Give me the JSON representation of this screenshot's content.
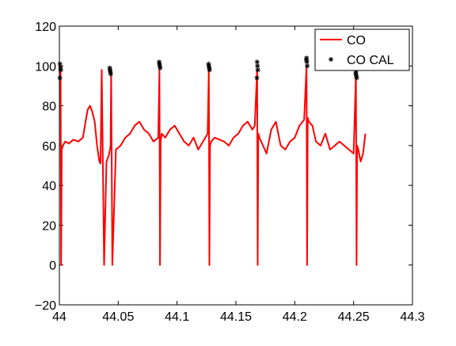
{
  "chart_data": {
    "type": "line",
    "title": "",
    "xlabel": "",
    "ylabel": "",
    "xlim": [
      44,
      44.3
    ],
    "ylim": [
      -20,
      120
    ],
    "x_ticks": [
      44,
      44.05,
      44.1,
      44.15,
      44.2,
      44.25,
      44.3
    ],
    "x_tick_labels": [
      "44",
      "44.05",
      "44.1",
      "44.15",
      "44.2",
      "44.25",
      "44.3"
    ],
    "y_ticks": [
      -20,
      0,
      20,
      40,
      60,
      80,
      100,
      120
    ],
    "y_tick_labels": [
      "−20",
      "0",
      "20",
      "40",
      "60",
      "80",
      "100",
      "120"
    ],
    "grid": false,
    "legend_position": "top-right",
    "series": [
      {
        "name": "CO",
        "color": "#ff0000",
        "style": "line",
        "x": [
          44.0,
          44.001,
          44.0015,
          44.002,
          44.003,
          44.005,
          44.008,
          44.012,
          44.016,
          44.02,
          44.024,
          44.026,
          44.028,
          44.03,
          44.032,
          44.034,
          44.035,
          44.036,
          44.038,
          44.04,
          44.042,
          44.043,
          44.0435,
          44.044,
          44.045,
          44.048,
          44.052,
          44.056,
          44.06,
          44.064,
          44.068,
          44.072,
          44.076,
          44.08,
          44.084,
          44.085,
          44.0855,
          44.086,
          44.087,
          44.09,
          44.094,
          44.098,
          44.102,
          44.106,
          44.11,
          44.114,
          44.118,
          44.122,
          44.126,
          44.127,
          44.1275,
          44.128,
          44.129,
          44.132,
          44.136,
          44.14,
          44.144,
          44.148,
          44.152,
          44.156,
          44.16,
          44.164,
          44.166,
          44.168,
          44.1685,
          44.169,
          44.17,
          44.173,
          44.176,
          44.18,
          44.184,
          44.188,
          44.192,
          44.196,
          44.2,
          44.204,
          44.208,
          44.21,
          44.2105,
          44.211,
          44.212,
          44.215,
          44.218,
          44.222,
          44.226,
          44.23,
          44.234,
          44.238,
          44.242,
          44.246,
          44.25,
          44.252,
          44.2525,
          44.253,
          44.254,
          44.256,
          44.258,
          44.26
        ],
        "y": [
          97,
          100,
          0,
          58,
          60,
          62,
          61,
          63,
          62,
          64,
          78,
          80,
          77,
          72,
          60,
          52,
          51,
          98,
          0,
          52,
          55,
          58,
          60,
          98,
          0,
          58,
          60,
          64,
          66,
          70,
          72,
          68,
          66,
          62,
          64,
          98,
          0,
          62,
          66,
          64,
          68,
          70,
          66,
          62,
          60,
          64,
          58,
          62,
          66,
          98,
          0,
          60,
          62,
          64,
          63,
          62,
          60,
          64,
          66,
          70,
          72,
          68,
          70,
          98,
          0,
          66,
          64,
          60,
          56,
          68,
          72,
          60,
          58,
          62,
          64,
          70,
          73,
          100,
          0,
          74,
          72,
          70,
          62,
          60,
          66,
          58,
          60,
          62,
          60,
          58,
          56,
          96,
          0,
          60,
          58,
          52,
          56,
          66
        ]
      },
      {
        "name": "CO CAL",
        "color": "#000000",
        "style": "markers",
        "marker": "asterisk",
        "x": [
          44.0005,
          44.0009,
          44.0012,
          44.0004,
          44.043,
          44.0433,
          44.0436,
          44.0428,
          44.085,
          44.0853,
          44.0856,
          44.0848,
          44.127,
          44.1273,
          44.1276,
          44.1268,
          44.168,
          44.1683,
          44.1686,
          44.1678,
          44.21,
          44.2103,
          44.2106,
          44.2098,
          44.252,
          44.2523,
          44.2526,
          44.2518
        ],
        "y": [
          101,
          99,
          98,
          94,
          98,
          97,
          96,
          99,
          101,
          100,
          99,
          102,
          100,
          99,
          98,
          101,
          102,
          100,
          98,
          94,
          104,
          102,
          100,
          103,
          97,
          95,
          94,
          96
        ]
      }
    ]
  }
}
